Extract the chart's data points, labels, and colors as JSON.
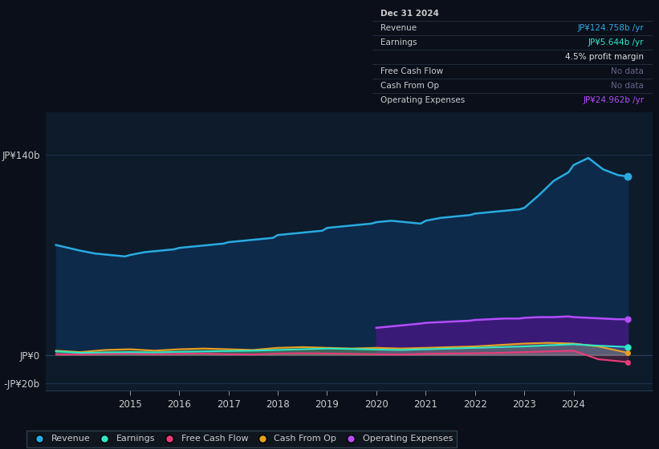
{
  "bg_color": "#0a0f1a",
  "plot_bg_color": "#0d1b2a",
  "ylabel_top": "JP¥140b",
  "ylabel_zero": "JP¥0",
  "ylabel_neg": "-JP¥20b",
  "ylim": [
    -25,
    170
  ],
  "xlim_start": 2013.3,
  "xlim_end": 2025.6,
  "xticks": [
    2015,
    2016,
    2017,
    2018,
    2019,
    2020,
    2021,
    2022,
    2023,
    2024
  ],
  "revenue_color": "#29abe2",
  "earnings_color": "#2de8c8",
  "fcf_color": "#e83c7a",
  "cashfromop_color": "#e8a020",
  "opex_color": "#b44cff",
  "opex_fill_color": "#3d1a7a",
  "revenue_fill_color": "#0d2a4a",
  "tooltip_title": "Dec 31 2024",
  "tooltip_revenue_label": "Revenue",
  "tooltip_revenue_val": "JP¥124.758b /yr",
  "tooltip_earnings_label": "Earnings",
  "tooltip_earnings_val": "JP¥5.644b /yr",
  "tooltip_margin_val": "4.5% profit margin",
  "tooltip_fcf_label": "Free Cash Flow",
  "tooltip_fcf_val": "No data",
  "tooltip_cashfromop_label": "Cash From Op",
  "tooltip_cashfromop_val": "No data",
  "tooltip_opex_label": "Operating Expenses",
  "tooltip_opex_val": "JP¥24.962b /yr",
  "legend_items": [
    "Revenue",
    "Earnings",
    "Free Cash Flow",
    "Cash From Op",
    "Operating Expenses"
  ],
  "legend_colors": [
    "#29abe2",
    "#2de8c8",
    "#e83c7a",
    "#e8a020",
    "#b44cff"
  ],
  "revenue_data_x": [
    2013.5,
    2014.0,
    2014.3,
    2014.6,
    2014.9,
    2015.0,
    2015.3,
    2015.6,
    2015.9,
    2016.0,
    2016.3,
    2016.6,
    2016.9,
    2017.0,
    2017.3,
    2017.6,
    2017.9,
    2018.0,
    2018.3,
    2018.6,
    2018.9,
    2019.0,
    2019.3,
    2019.6,
    2019.9,
    2020.0,
    2020.3,
    2020.6,
    2020.9,
    2021.0,
    2021.3,
    2021.6,
    2021.9,
    2022.0,
    2022.3,
    2022.6,
    2022.9,
    2023.0,
    2023.3,
    2023.6,
    2023.9,
    2024.0,
    2024.3,
    2024.6,
    2024.9,
    2025.1
  ],
  "revenue_data_y": [
    77,
    73,
    71,
    70,
    69,
    70,
    72,
    73,
    74,
    75,
    76,
    77,
    78,
    79,
    80,
    81,
    82,
    84,
    85,
    86,
    87,
    89,
    90,
    91,
    92,
    93,
    94,
    93,
    92,
    94,
    96,
    97,
    98,
    99,
    100,
    101,
    102,
    103,
    112,
    122,
    128,
    133,
    138,
    130,
    126,
    125
  ],
  "earnings_data_x": [
    2013.5,
    2014.0,
    2014.5,
    2015.0,
    2015.5,
    2016.0,
    2016.5,
    2017.0,
    2017.5,
    2018.0,
    2018.5,
    2019.0,
    2019.5,
    2020.0,
    2020.5,
    2021.0,
    2021.5,
    2022.0,
    2022.5,
    2023.0,
    2023.5,
    2024.0,
    2024.5,
    2025.1
  ],
  "earnings_data_y": [
    2.5,
    1.5,
    1.8,
    2.0,
    1.8,
    2.2,
    2.5,
    2.8,
    3.0,
    3.5,
    4.0,
    4.5,
    4.2,
    3.8,
    3.5,
    4.0,
    4.5,
    5.0,
    5.5,
    6.0,
    6.8,
    7.5,
    6.5,
    5.6
  ],
  "fcf_data_x": [
    2013.5,
    2014.0,
    2014.5,
    2015.0,
    2015.5,
    2016.0,
    2016.5,
    2017.0,
    2017.5,
    2018.0,
    2018.5,
    2019.0,
    2019.5,
    2020.0,
    2020.5,
    2021.0,
    2021.5,
    2022.0,
    2022.5,
    2023.0,
    2023.5,
    2024.0,
    2024.5,
    2025.1
  ],
  "fcf_data_y": [
    0.5,
    0.3,
    0.8,
    1.0,
    0.5,
    0.8,
    1.0,
    0.5,
    0.3,
    1.0,
    1.2,
    1.0,
    0.8,
    0.5,
    0.3,
    0.8,
    1.0,
    1.2,
    1.5,
    2.0,
    2.5,
    3.0,
    -3.0,
    -5.0
  ],
  "cashfromop_data_x": [
    2013.5,
    2014.0,
    2014.5,
    2015.0,
    2015.5,
    2016.0,
    2016.5,
    2017.0,
    2017.5,
    2018.0,
    2018.5,
    2019.0,
    2019.5,
    2020.0,
    2020.5,
    2021.0,
    2021.5,
    2022.0,
    2022.5,
    2023.0,
    2023.5,
    2024.0,
    2024.5,
    2025.1
  ],
  "cashfromop_data_y": [
    3.0,
    2.0,
    3.5,
    4.0,
    3.0,
    4.0,
    4.5,
    4.0,
    3.5,
    5.0,
    5.5,
    5.0,
    4.5,
    5.0,
    4.5,
    5.0,
    5.5,
    6.0,
    7.0,
    8.0,
    8.5,
    8.0,
    6.0,
    1.5
  ],
  "opex_data_x": [
    2020.0,
    2020.3,
    2020.6,
    2020.9,
    2021.0,
    2021.3,
    2021.6,
    2021.9,
    2022.0,
    2022.3,
    2022.6,
    2022.9,
    2023.0,
    2023.3,
    2023.6,
    2023.9,
    2024.0,
    2024.3,
    2024.6,
    2024.9,
    2025.1
  ],
  "opex_data_y": [
    19,
    20,
    21,
    22,
    22.5,
    23,
    23.5,
    24,
    24.5,
    25,
    25.5,
    25.5,
    26,
    26.5,
    26.5,
    27,
    26.5,
    26,
    25.5,
    25,
    25
  ]
}
